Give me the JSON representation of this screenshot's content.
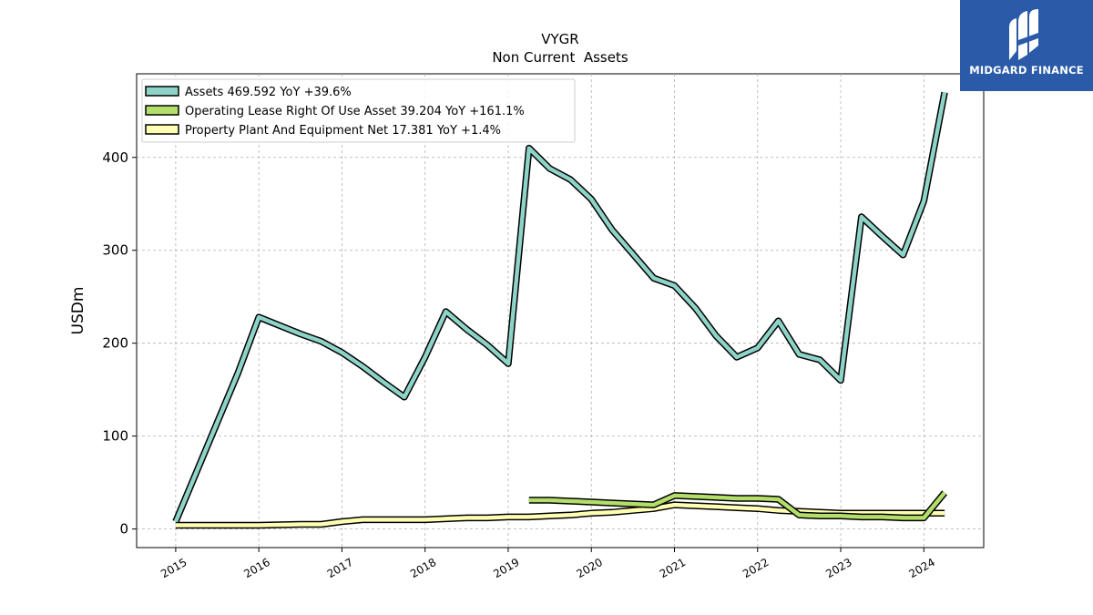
{
  "brand": {
    "name": "MIDGARD FINANCE",
    "bg": "#2a5aa8"
  },
  "chart_data": {
    "type": "line",
    "title": "VYGR",
    "subtitle": "Non Current  Assets",
    "ylabel": "USDm",
    "xlabel": "",
    "xlim": [
      2014.53,
      2024.72
    ],
    "ylim": [
      -20,
      490
    ],
    "yticks": [
      0,
      100,
      200,
      300,
      400
    ],
    "xticks": [
      2015,
      2016,
      2017,
      2018,
      2019,
      2020,
      2021,
      2022,
      2023,
      2024
    ],
    "grid": true,
    "legend_position": "top-left",
    "series": [
      {
        "name": "Assets  469.592 YoY +39.6%",
        "color": "#8dd3c7",
        "x": [
          2015.0,
          2015.75,
          2016.0,
          2016.5,
          2016.75,
          2017.0,
          2017.25,
          2017.5,
          2017.75,
          2018.0,
          2018.25,
          2018.5,
          2018.75,
          2019.0,
          2019.25,
          2019.5,
          2019.75,
          2020.0,
          2020.25,
          2020.5,
          2020.75,
          2021.0,
          2021.25,
          2021.5,
          2021.75,
          2022.0,
          2022.25,
          2022.5,
          2022.75,
          2023.0,
          2023.25,
          2023.5,
          2023.75,
          2024.0,
          2024.25
        ],
        "values": [
          8,
          168,
          228,
          210,
          202,
          190,
          175,
          158,
          142,
          185,
          234,
          215,
          198,
          178,
          410,
          388,
          376,
          355,
          322,
          296,
          270,
          262,
          238,
          208,
          185,
          195,
          224,
          188,
          182,
          160,
          336,
          315,
          295,
          353,
          470
        ]
      },
      {
        "name": "Operating Lease Right Of Use Asset  39.204 YoY +161.1%",
        "color": "#b3de69",
        "x": [
          2019.25,
          2019.5,
          2019.75,
          2020.0,
          2020.25,
          2020.5,
          2020.75,
          2021.0,
          2021.25,
          2021.5,
          2021.75,
          2022.0,
          2022.25,
          2022.5,
          2022.75,
          2023.0,
          2023.25,
          2023.5,
          2023.75,
          2024.0,
          2024.25
        ],
        "values": [
          31,
          31,
          30,
          29,
          28,
          27,
          26,
          36,
          35,
          34,
          33,
          33,
          32,
          15,
          14,
          14,
          13,
          13,
          12,
          12,
          39
        ]
      },
      {
        "name": "Property Plant And Equipment Net  17.381 YoY +1.4%",
        "color": "#ffffb3",
        "x": [
          2015.0,
          2015.5,
          2016.0,
          2016.5,
          2016.75,
          2017.0,
          2017.25,
          2017.5,
          2017.75,
          2018.0,
          2018.25,
          2018.5,
          2018.75,
          2019.0,
          2019.25,
          2019.5,
          2019.75,
          2020.0,
          2020.25,
          2020.5,
          2020.75,
          2021.0,
          2021.25,
          2021.5,
          2021.75,
          2022.0,
          2022.25,
          2022.5,
          2022.75,
          2023.0,
          2023.25,
          2023.5,
          2023.75,
          2024.0,
          2024.25
        ],
        "values": [
          4,
          4,
          4,
          5,
          5,
          8,
          10,
          10,
          10,
          10,
          11,
          12,
          12,
          13,
          13,
          14,
          15,
          17,
          18,
          20,
          22,
          26,
          25,
          24,
          23,
          22,
          20,
          19,
          18,
          17,
          17,
          17,
          17,
          17,
          17
        ]
      }
    ]
  }
}
